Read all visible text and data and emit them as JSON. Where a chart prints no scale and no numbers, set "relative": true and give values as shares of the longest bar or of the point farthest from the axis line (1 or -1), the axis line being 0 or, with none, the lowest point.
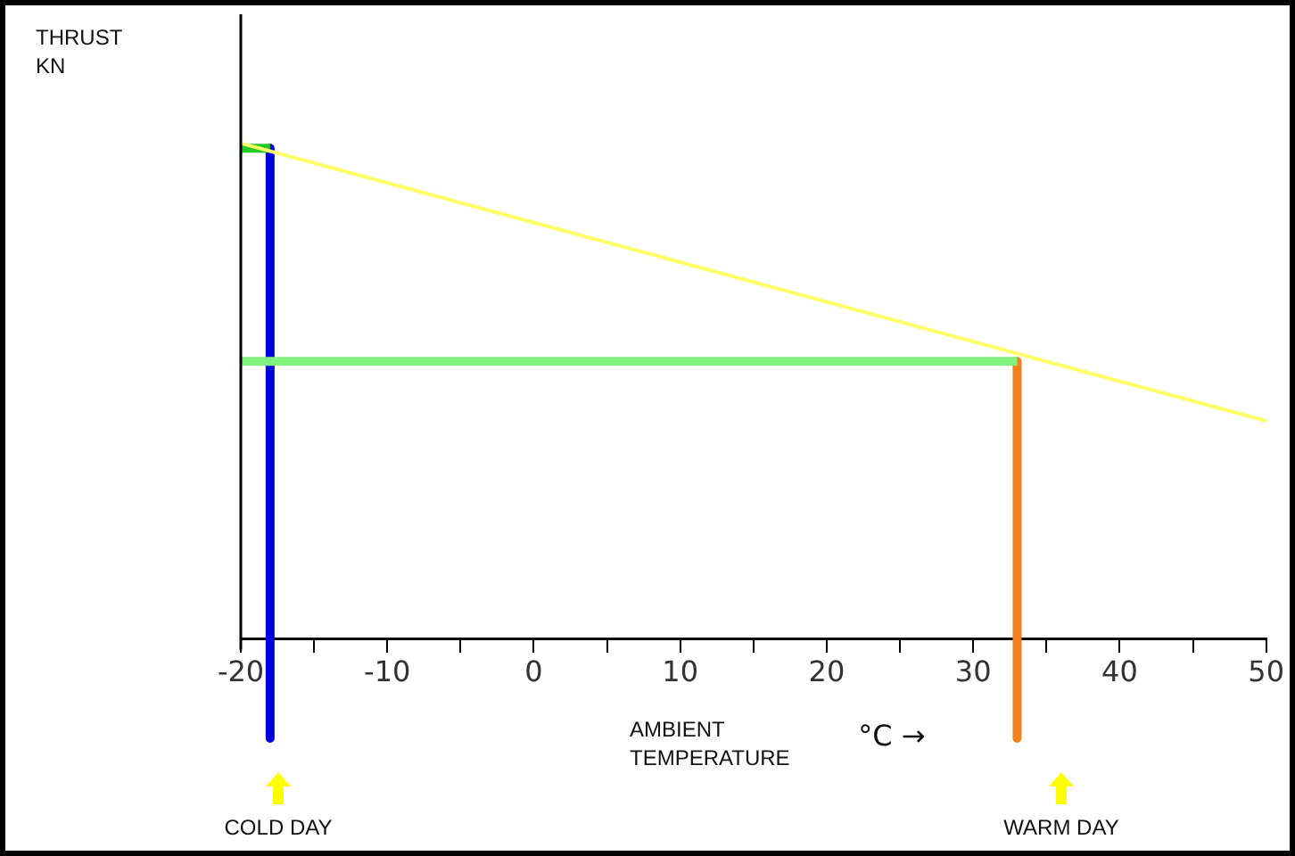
{
  "chart_data": {
    "type": "line",
    "relative": true,
    "xlabel": "AMBIENT\nTEMPERATURE",
    "xlim": [
      -20,
      50
    ],
    "xticks": [
      -20,
      {
        "value": -15,
        "label": null
      },
      -10,
      {
        "value": -5,
        "label": null
      },
      0,
      {
        "value": 5,
        "label": null
      },
      10,
      {
        "value": 15,
        "label": null
      },
      20,
      {
        "value": 25,
        "label": null
      },
      30,
      {
        "value": 35,
        "label": null
      },
      40,
      {
        "value": 45,
        "label": null
      },
      50
    ],
    "series": [
      {
        "color": "#ffff66",
        "x": [
          -20,
          50
        ],
        "values": [
          1,
          0.44
        ]
      },
      {
        "color": "#80f080",
        "x": [
          -20,
          33
        ],
        "values": [
          0.56,
          0.56
        ]
      },
      {
        "color": "#22cc22",
        "x": [
          -20,
          -18
        ],
        "values": [
          0.99,
          0.99
        ]
      },
      {
        "color": "#0000dd",
        "x": [
          -18,
          -18
        ],
        "values": [
          0.99,
          -0.2
        ]
      },
      {
        "color": "#f08020",
        "x": [
          33,
          33
        ],
        "values": [
          0.56,
          -0.2
        ]
      }
    ],
    "annotations": [
      "THRUST\nKN",
      "°C →",
      "COLD DAY",
      "WARM DAY"
    ],
    "legend": false,
    "marker": "none",
    "line_style": "solid"
  }
}
